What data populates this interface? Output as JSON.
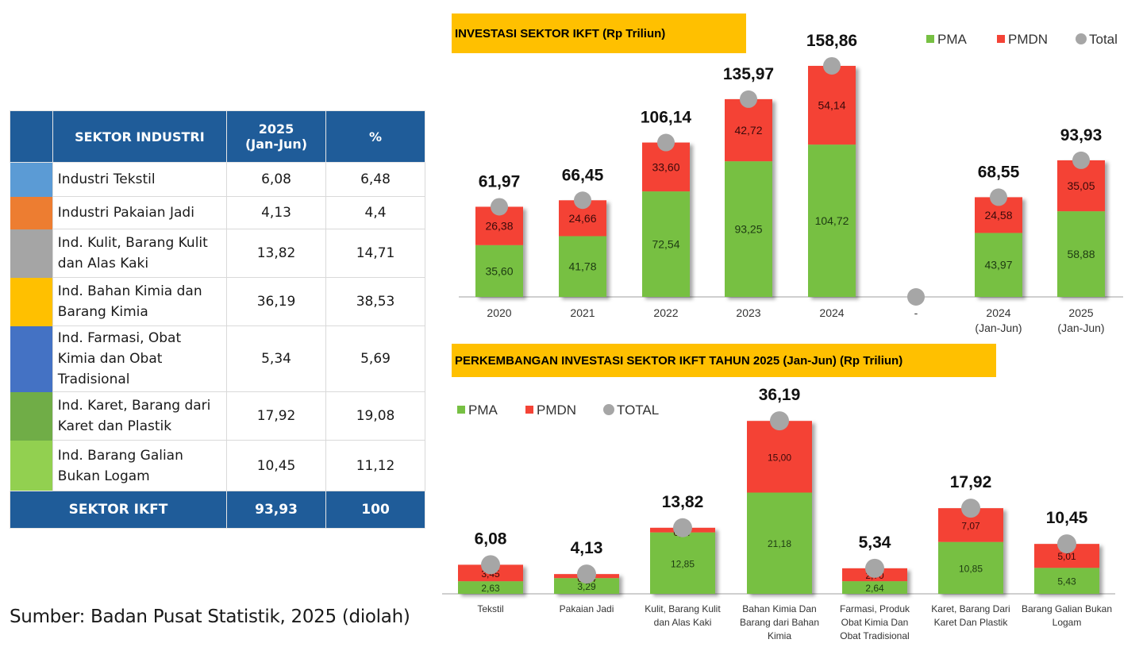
{
  "table": {
    "headers": [
      "",
      "SEKTOR INDUSTRI",
      "2025\n(Jan-Jun)",
      "%"
    ],
    "header_col2_line1": "2025",
    "header_col2_line2": "(Jan-Jun)",
    "rows": [
      {
        "color": "#5b9bd5",
        "name": "Industri Tekstil",
        "value": "6,08",
        "pct": "6,48"
      },
      {
        "color": "#ed7d31",
        "name": "Industri Pakaian Jadi",
        "value": "4,13",
        "pct": "4,4"
      },
      {
        "color": "#a5a5a5",
        "name": "Ind. Kulit, Barang Kulit dan Alas Kaki",
        "value": "13,82",
        "pct": "14,71"
      },
      {
        "color": "#ffc000",
        "name": "Ind. Bahan Kimia dan Barang Kimia",
        "value": "36,19",
        "pct": "38,53"
      },
      {
        "color": "#4472c4",
        "name": "Ind. Farmasi, Obat Kimia dan Obat Tradisional",
        "value": "5,34",
        "pct": "5,69"
      },
      {
        "color": "#70ad47",
        "name": "Ind. Karet, Barang dari Karet dan Plastik",
        "value": "17,92",
        "pct": "19,08"
      },
      {
        "color": "#92d050",
        "name": "Ind. Barang Galian Bukan Logam",
        "value": "10,45",
        "pct": "11,12"
      }
    ],
    "total": {
      "label": "SEKTOR IKFT",
      "value": "93,93",
      "pct": "100"
    }
  },
  "source": "Sumber: Badan Pusat Statistik, 2025 (diolah)",
  "colors": {
    "pma": "#77c043",
    "pmdn": "#f44336",
    "total": "#a6a6a6",
    "title_bg": "#ffc000",
    "table_header": "#1f5c99"
  },
  "chart_data": [
    {
      "type": "bar",
      "stacked": true,
      "title": "INVESTASI SEKTOR IKFT (Rp Triliun)",
      "legend": [
        "PMA",
        "PMDN",
        "Total"
      ],
      "legend_position": "top-right",
      "categories": [
        "2020",
        "2021",
        "2022",
        "2023",
        "2024",
        "-",
        "2024\n(Jan-Jun)",
        "2025\n(Jan-Jun)"
      ],
      "category_lines": [
        [
          "2020"
        ],
        [
          "2021"
        ],
        [
          "2022"
        ],
        [
          "2023"
        ],
        [
          "2024"
        ],
        [
          "-"
        ],
        [
          "2024",
          "(Jan-Jun)"
        ],
        [
          "2025",
          "(Jan-Jun)"
        ]
      ],
      "series": [
        {
          "name": "PMA",
          "values": [
            35.6,
            41.78,
            72.54,
            93.25,
            104.72,
            null,
            43.97,
            58.88
          ],
          "labels": [
            "35,60",
            "41,78",
            "72,54",
            "93,25",
            "104,72",
            "",
            "43,97",
            "58,88"
          ]
        },
        {
          "name": "PMDN",
          "values": [
            26.38,
            24.66,
            33.6,
            42.72,
            54.14,
            null,
            24.58,
            35.05
          ],
          "labels": [
            "26,38",
            "24,66",
            "33,60",
            "42,72",
            "54,14",
            "",
            "24,58",
            "35,05"
          ]
        },
        {
          "name": "Total",
          "values": [
            61.97,
            66.45,
            106.14,
            135.97,
            158.86,
            0,
            68.55,
            93.93
          ],
          "labels": [
            "61,97",
            "66,45",
            "106,14",
            "135,97",
            "158,86",
            "",
            "68,55",
            "93,93"
          ]
        }
      ],
      "xlabel": "",
      "ylabel": "",
      "ylim": [
        0,
        160
      ],
      "grid": false
    },
    {
      "type": "bar",
      "stacked": true,
      "title": "PERKEMBANGAN INVESTASI SEKTOR IKFT TAHUN 2025 (Jan-Jun) (Rp Triliun)",
      "legend": [
        "PMA",
        "PMDN",
        "TOTAL"
      ],
      "legend_position": "top-left",
      "categories": [
        "Tekstil",
        "Pakaian Jadi",
        "Kulit, Barang Kulit dan Alas Kaki",
        "Bahan Kimia Dan Barang dari Bahan Kimia",
        "Farmasi, Produk Obat Kimia Dan Obat Tradisional",
        "Karet, Barang Dari Karet Dan Plastik",
        "Barang Galian Bukan Logam"
      ],
      "category_lines": [
        [
          "Tekstil"
        ],
        [
          "Pakaian Jadi"
        ],
        [
          "Kulit, Barang Kulit",
          "dan Alas Kaki"
        ],
        [
          "Bahan Kimia Dan",
          "Barang dari Bahan",
          "Kimia"
        ],
        [
          "Farmasi, Produk",
          "Obat Kimia Dan",
          "Obat Tradisional"
        ],
        [
          "Karet, Barang Dari",
          "Karet Dan Plastik"
        ],
        [
          "Barang Galian Bukan",
          "Logam"
        ]
      ],
      "series": [
        {
          "name": "PMA",
          "values": [
            2.63,
            3.29,
            12.85,
            21.18,
            2.64,
            10.85,
            5.43
          ],
          "labels": [
            "2,63",
            "3,29",
            "12,85",
            "21,18",
            "2,64",
            "10,85",
            "5,43"
          ]
        },
        {
          "name": "PMDN",
          "values": [
            3.45,
            0.84,
            0.97,
            15.0,
            2.7,
            7.07,
            5.01
          ],
          "labels": [
            "3,45",
            "0,84",
            "0,97",
            "15,00",
            "2,70",
            "7,07",
            "5,01"
          ]
        },
        {
          "name": "TOTAL",
          "values": [
            6.08,
            4.13,
            13.82,
            36.19,
            5.34,
            17.92,
            10.45
          ],
          "labels": [
            "6,08",
            "4,13",
            "13,82",
            "36,19",
            "5,34",
            "17,92",
            "10,45"
          ]
        }
      ],
      "xlabel": "",
      "ylabel": "",
      "ylim": [
        0,
        36.19
      ],
      "grid": false
    }
  ]
}
